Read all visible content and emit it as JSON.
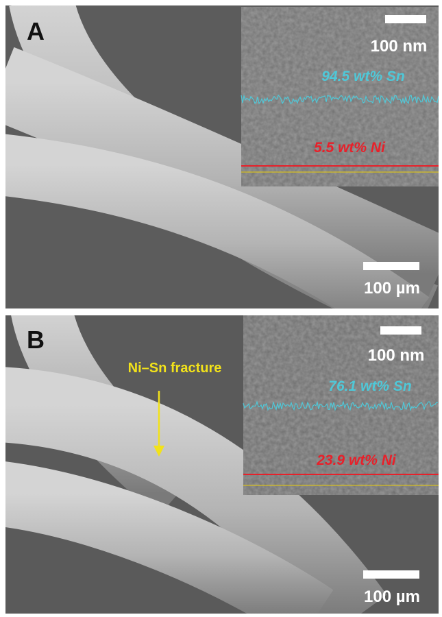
{
  "panels": [
    {
      "label": "A",
      "scale_bar": "100 µm",
      "inset": {
        "scale_bar": "100 nm",
        "sn_label": "94.5 wt% Sn",
        "ni_label": "5.5 wt% Ni"
      }
    },
    {
      "label": "B",
      "scale_bar": "100 µm",
      "annotation": "Ni–Sn fracture",
      "inset": {
        "scale_bar": "100 nm",
        "sn_label": "76.1 wt% Sn",
        "ni_label": "23.9 wt% Ni"
      }
    }
  ]
}
